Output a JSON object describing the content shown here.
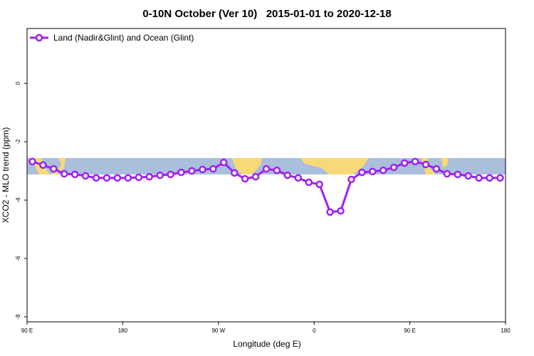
{
  "chart_data": {
    "type": "line",
    "title": "0-10N October (Ver 10)   2015-01-01 to 2020-12-18",
    "x_label": "Longitude (deg E)",
    "y_label": "XCO2 - MLO trend (ppm)",
    "x": [
      95,
      105,
      115,
      125,
      135,
      145,
      155,
      165,
      175,
      185,
      195,
      205,
      215,
      225,
      235,
      245,
      255,
      265,
      275,
      285,
      295,
      305,
      315,
      325,
      335,
      345,
      355,
      365,
      375,
      385,
      395,
      405,
      415,
      425,
      435,
      445,
      455,
      465,
      475,
      485,
      495,
      505,
      515,
      525,
      535
    ],
    "series": [
      {
        "name": "Land (Nadir&Glint) and Ocean (Glint)",
        "color": "#a020f0",
        "values": [
          -2.68,
          -2.8,
          -2.93,
          -3.1,
          -3.12,
          -3.17,
          -3.24,
          -3.24,
          -3.24,
          -3.24,
          -3.22,
          -3.2,
          -3.15,
          -3.12,
          -3.05,
          -3.0,
          -2.95,
          -2.93,
          -2.71,
          -3.07,
          -3.27,
          -3.2,
          -2.93,
          -2.98,
          -3.15,
          -3.24,
          -3.39,
          -3.46,
          -4.41,
          -4.37,
          -3.29,
          -3.05,
          -3.02,
          -2.98,
          -2.88,
          -2.73,
          -2.68,
          -2.78,
          -2.93,
          -3.1,
          -3.12,
          -3.17,
          -3.24,
          -3.24,
          -3.24
        ]
      }
    ],
    "xlim": [
      90,
      540
    ],
    "xticks": [
      {
        "value": 90,
        "label": "90 E"
      },
      180,
      {
        "value": 270,
        "label": "90 W"
      },
      {
        "value": 360,
        "label": "0"
      },
      {
        "value": 450,
        "label": "90 E"
      },
      {
        "value": 540,
        "label": "180"
      }
    ],
    "ylim": [
      -8.17,
      1.88
    ],
    "yticks": [
      0,
      -2,
      -4,
      -6,
      -8
    ],
    "legend": "top-left"
  }
}
